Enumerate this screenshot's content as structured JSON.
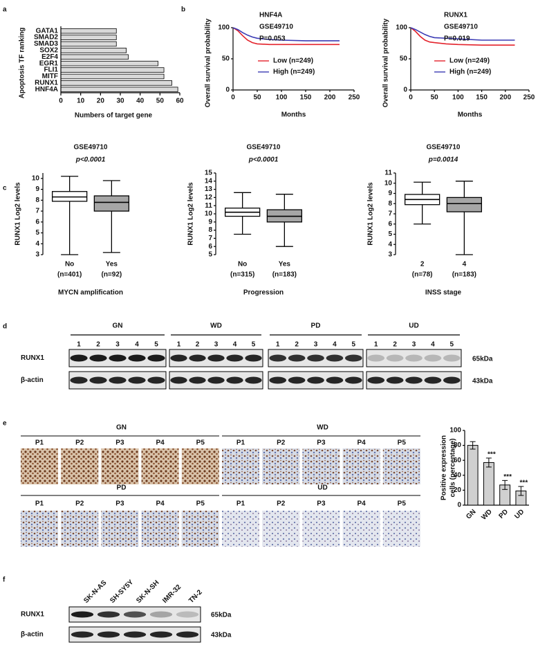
{
  "panel_letters": [
    "a",
    "b",
    "c",
    "d",
    "e",
    "f"
  ],
  "chart_data": [
    {
      "type": "hbar",
      "ylabel": "Apoptosis TF ranking",
      "xlabel": "Numbers of target gene",
      "categories": [
        "GATA1",
        "SMAD2",
        "SMAD3",
        "SOX2",
        "E2F4",
        "EGR1",
        "FLI1",
        "MITF",
        "RUNX1",
        "HNF4A"
      ],
      "values": [
        28,
        28,
        28,
        33,
        34,
        49,
        52,
        52,
        56,
        59
      ],
      "color": "#d9d9d9",
      "xlim": [
        0,
        60
      ],
      "xticks": [
        0,
        10,
        20,
        30,
        40,
        50,
        60
      ]
    },
    {
      "type": "line",
      "title": "HNF4A",
      "subtitle": "GSE49710",
      "annotation": "P=0.053",
      "ylabel": "Overall survival probability",
      "xlabel": "Months",
      "x": [
        0,
        10,
        20,
        30,
        40,
        50,
        75,
        100,
        150,
        200,
        220
      ],
      "series": [
        {
          "name": "Low (n=249)",
          "color": "#e3222b",
          "values": [
            100,
            95,
            87,
            80,
            76,
            74,
            73,
            73,
            73,
            73,
            73
          ]
        },
        {
          "name": "High (n=249)",
          "color": "#3a3ab4",
          "values": [
            100,
            97,
            92,
            88,
            85,
            83,
            81,
            80,
            79,
            79,
            79
          ]
        }
      ],
      "xlim": [
        0,
        250
      ],
      "xticks": [
        0,
        50,
        100,
        150,
        200,
        250
      ],
      "ylim": [
        0,
        100
      ],
      "yticks": [
        0,
        50,
        100
      ]
    },
    {
      "type": "line",
      "title": "RUNX1",
      "subtitle": "GSE49710",
      "annotation": "P=0.019",
      "ylabel": "Overall survival probability",
      "xlabel": "Months",
      "x": [
        0,
        10,
        20,
        30,
        40,
        50,
        75,
        100,
        150,
        200,
        220
      ],
      "series": [
        {
          "name": "Low (n=249)",
          "color": "#e3222b",
          "values": [
            100,
            94,
            86,
            80,
            77,
            76,
            74,
            73,
            72,
            72,
            72
          ]
        },
        {
          "name": "High (n=249)",
          "color": "#3a3ab4",
          "values": [
            100,
            97,
            93,
            89,
            86,
            84,
            83,
            82,
            80,
            80,
            80
          ]
        }
      ],
      "xlim": [
        0,
        250
      ],
      "xticks": [
        0,
        50,
        100,
        150,
        200,
        250
      ],
      "ylim": [
        0,
        100
      ],
      "yticks": [
        0,
        50,
        100
      ]
    },
    {
      "type": "box",
      "title": "GSE49710",
      "subtitle": "p<0.0001",
      "ylabel": "RUNX1 Log2 levels",
      "xlabel": "MYCN amplification",
      "categories": [
        "No",
        "Yes"
      ],
      "n_labels": [
        "(n=401)",
        "(n=92)"
      ],
      "boxes": [
        {
          "min": 3,
          "q1": 7.9,
          "median": 8.3,
          "q3": 8.8,
          "max": 10.2,
          "color": "#ffffff"
        },
        {
          "min": 3.2,
          "q1": 7.0,
          "median": 7.8,
          "q3": 8.4,
          "max": 9.8,
          "color": "#a6a6a6"
        }
      ],
      "ylim": [
        3,
        10.5
      ],
      "yticks": [
        3,
        4,
        5,
        6,
        7,
        8,
        9,
        10
      ]
    },
    {
      "type": "box",
      "title": "GSE49710",
      "subtitle": "p<0.0001",
      "ylabel": "RUNX1 Log2 levels",
      "xlabel": "Progression",
      "categories": [
        "No",
        "Yes"
      ],
      "n_labels": [
        "(n=315)",
        "(n=183)"
      ],
      "boxes": [
        {
          "min": 7.5,
          "q1": 9.7,
          "median": 10.2,
          "q3": 10.7,
          "max": 12.6,
          "color": "#ffffff"
        },
        {
          "min": 6.0,
          "q1": 9.0,
          "median": 9.7,
          "q3": 10.5,
          "max": 12.4,
          "color": "#a6a6a6"
        }
      ],
      "ylim": [
        5,
        15
      ],
      "yticks": [
        5,
        6,
        7,
        8,
        9,
        10,
        11,
        12,
        13,
        14,
        15
      ]
    },
    {
      "type": "box",
      "title": "GSE49710",
      "subtitle": "p=0.0014",
      "ylabel": "RUNX1 Log2 levels",
      "xlabel": "INSS stage",
      "categories": [
        "2",
        "4"
      ],
      "n_labels": [
        "(n=78)",
        "(n=183)"
      ],
      "boxes": [
        {
          "min": 6.0,
          "q1": 7.9,
          "median": 8.4,
          "q3": 8.9,
          "max": 10.1,
          "color": "#ffffff"
        },
        {
          "min": 3,
          "q1": 7.2,
          "median": 8.0,
          "q3": 8.6,
          "max": 10.2,
          "color": "#a6a6a6"
        }
      ],
      "ylim": [
        3,
        11
      ],
      "yticks": [
        3,
        4,
        5,
        6,
        7,
        8,
        9,
        10,
        11
      ]
    },
    {
      "type": "bar",
      "ylabel": [
        "Positive expression",
        "cells (percentage)"
      ],
      "categories": [
        "GN",
        "WD",
        "PD",
        "UD"
      ],
      "values": [
        80,
        57,
        27,
        19
      ],
      "errors": [
        5,
        6,
        6,
        6
      ],
      "value_annotations": [
        null,
        "***",
        "***",
        "***"
      ],
      "color": "#d0d0d0",
      "ylim": [
        0,
        100
      ],
      "yticks": [
        0,
        20,
        40,
        60,
        80,
        100
      ]
    }
  ],
  "blots": [
    {
      "groups": [
        "GN",
        "WD",
        "PD",
        "UD"
      ],
      "lanes": [
        "1",
        "2",
        "3",
        "4",
        "5"
      ],
      "rows": [
        {
          "label": "RUNX1",
          "size": "65kDa"
        },
        {
          "label": "β-actin",
          "size": "43kDa"
        }
      ]
    },
    {
      "lanes": [
        "SK-N-AS",
        "SH-SY5Y",
        "SK-N-SH",
        "IMR-32",
        "TN-2"
      ],
      "rows": [
        {
          "label": "RUNX1",
          "size": "65kDa"
        },
        {
          "label": "β-actin",
          "size": "43kDa"
        }
      ]
    }
  ],
  "ihc": {
    "groups": [
      {
        "name": "GN",
        "samples": [
          "P1",
          "P2",
          "P3",
          "P4",
          "P5"
        ]
      },
      {
        "name": "WD",
        "samples": [
          "P1",
          "P2",
          "P3",
          "P4",
          "P5"
        ]
      },
      {
        "name": "PD",
        "samples": [
          "P1",
          "P2",
          "P3",
          "P4",
          "P5"
        ]
      },
      {
        "name": "UD",
        "samples": [
          "P1",
          "P2",
          "P3",
          "P4",
          "P5"
        ]
      }
    ]
  }
}
